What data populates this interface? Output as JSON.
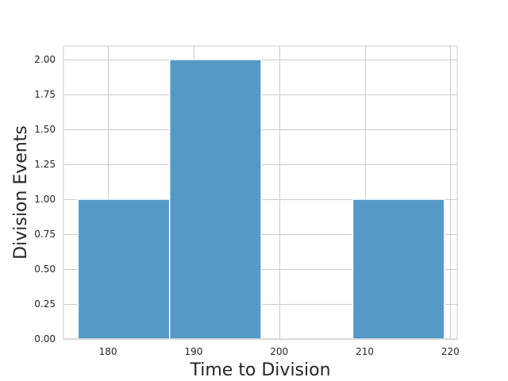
{
  "chart_data": {
    "type": "bar",
    "title": "",
    "xlabel": "Time to Division",
    "ylabel": "Division Events",
    "xlim": [
      174.8,
      220.8
    ],
    "ylim": [
      0,
      2.1
    ],
    "x_ticks": [
      180,
      190,
      200,
      210,
      220
    ],
    "y_ticks": [
      0,
      0.25,
      0.5,
      0.75,
      1.0,
      1.25,
      1.5,
      1.75,
      2.0
    ],
    "y_tick_labels": [
      "0.00",
      "0.25",
      "0.50",
      "0.75",
      "1.00",
      "1.25",
      "1.50",
      "1.75",
      "2.00"
    ],
    "grid": true,
    "bar_color": "#4c93c4",
    "bar_edge_color": "#ffffff",
    "bins": [
      {
        "start": 176.5,
        "end": 187.2,
        "value": 1
      },
      {
        "start": 187.2,
        "end": 197.9,
        "value": 2
      },
      {
        "start": 197.9,
        "end": 208.6,
        "value": 0
      },
      {
        "start": 208.6,
        "end": 219.3,
        "value": 1
      }
    ]
  }
}
